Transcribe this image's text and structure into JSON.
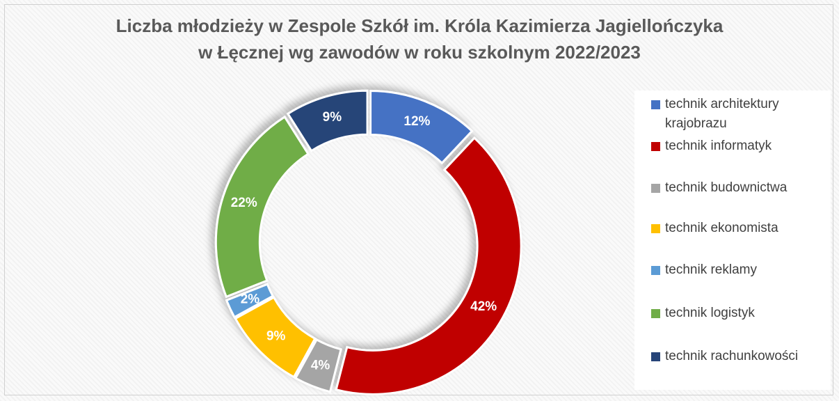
{
  "chart_data": {
    "type": "donut",
    "title": [
      "Liczba młodzieży w Zespole Szkół im. Króla Kazimierza Jagiellończyka",
      "w Łęcznej  wg zawodów w roku szkolnym 2022/2023"
    ],
    "categories": [
      "technik architektury krajobrazu",
      "technik informatyk",
      "technik budownictwa",
      "technik ekonomista",
      "technik reklamy",
      "technik logistyk",
      "technik rachunkowości"
    ],
    "values": [
      12,
      42,
      4,
      9,
      2,
      22,
      9
    ],
    "value_labels": [
      "12%",
      "42%",
      "4%",
      "9%",
      "2%",
      "22%",
      "9%"
    ],
    "colors": [
      "#4472c4",
      "#c00000",
      "#a5a5a5",
      "#ffc000",
      "#5b9bd5",
      "#70ad47",
      "#264478"
    ],
    "legend": "right"
  }
}
